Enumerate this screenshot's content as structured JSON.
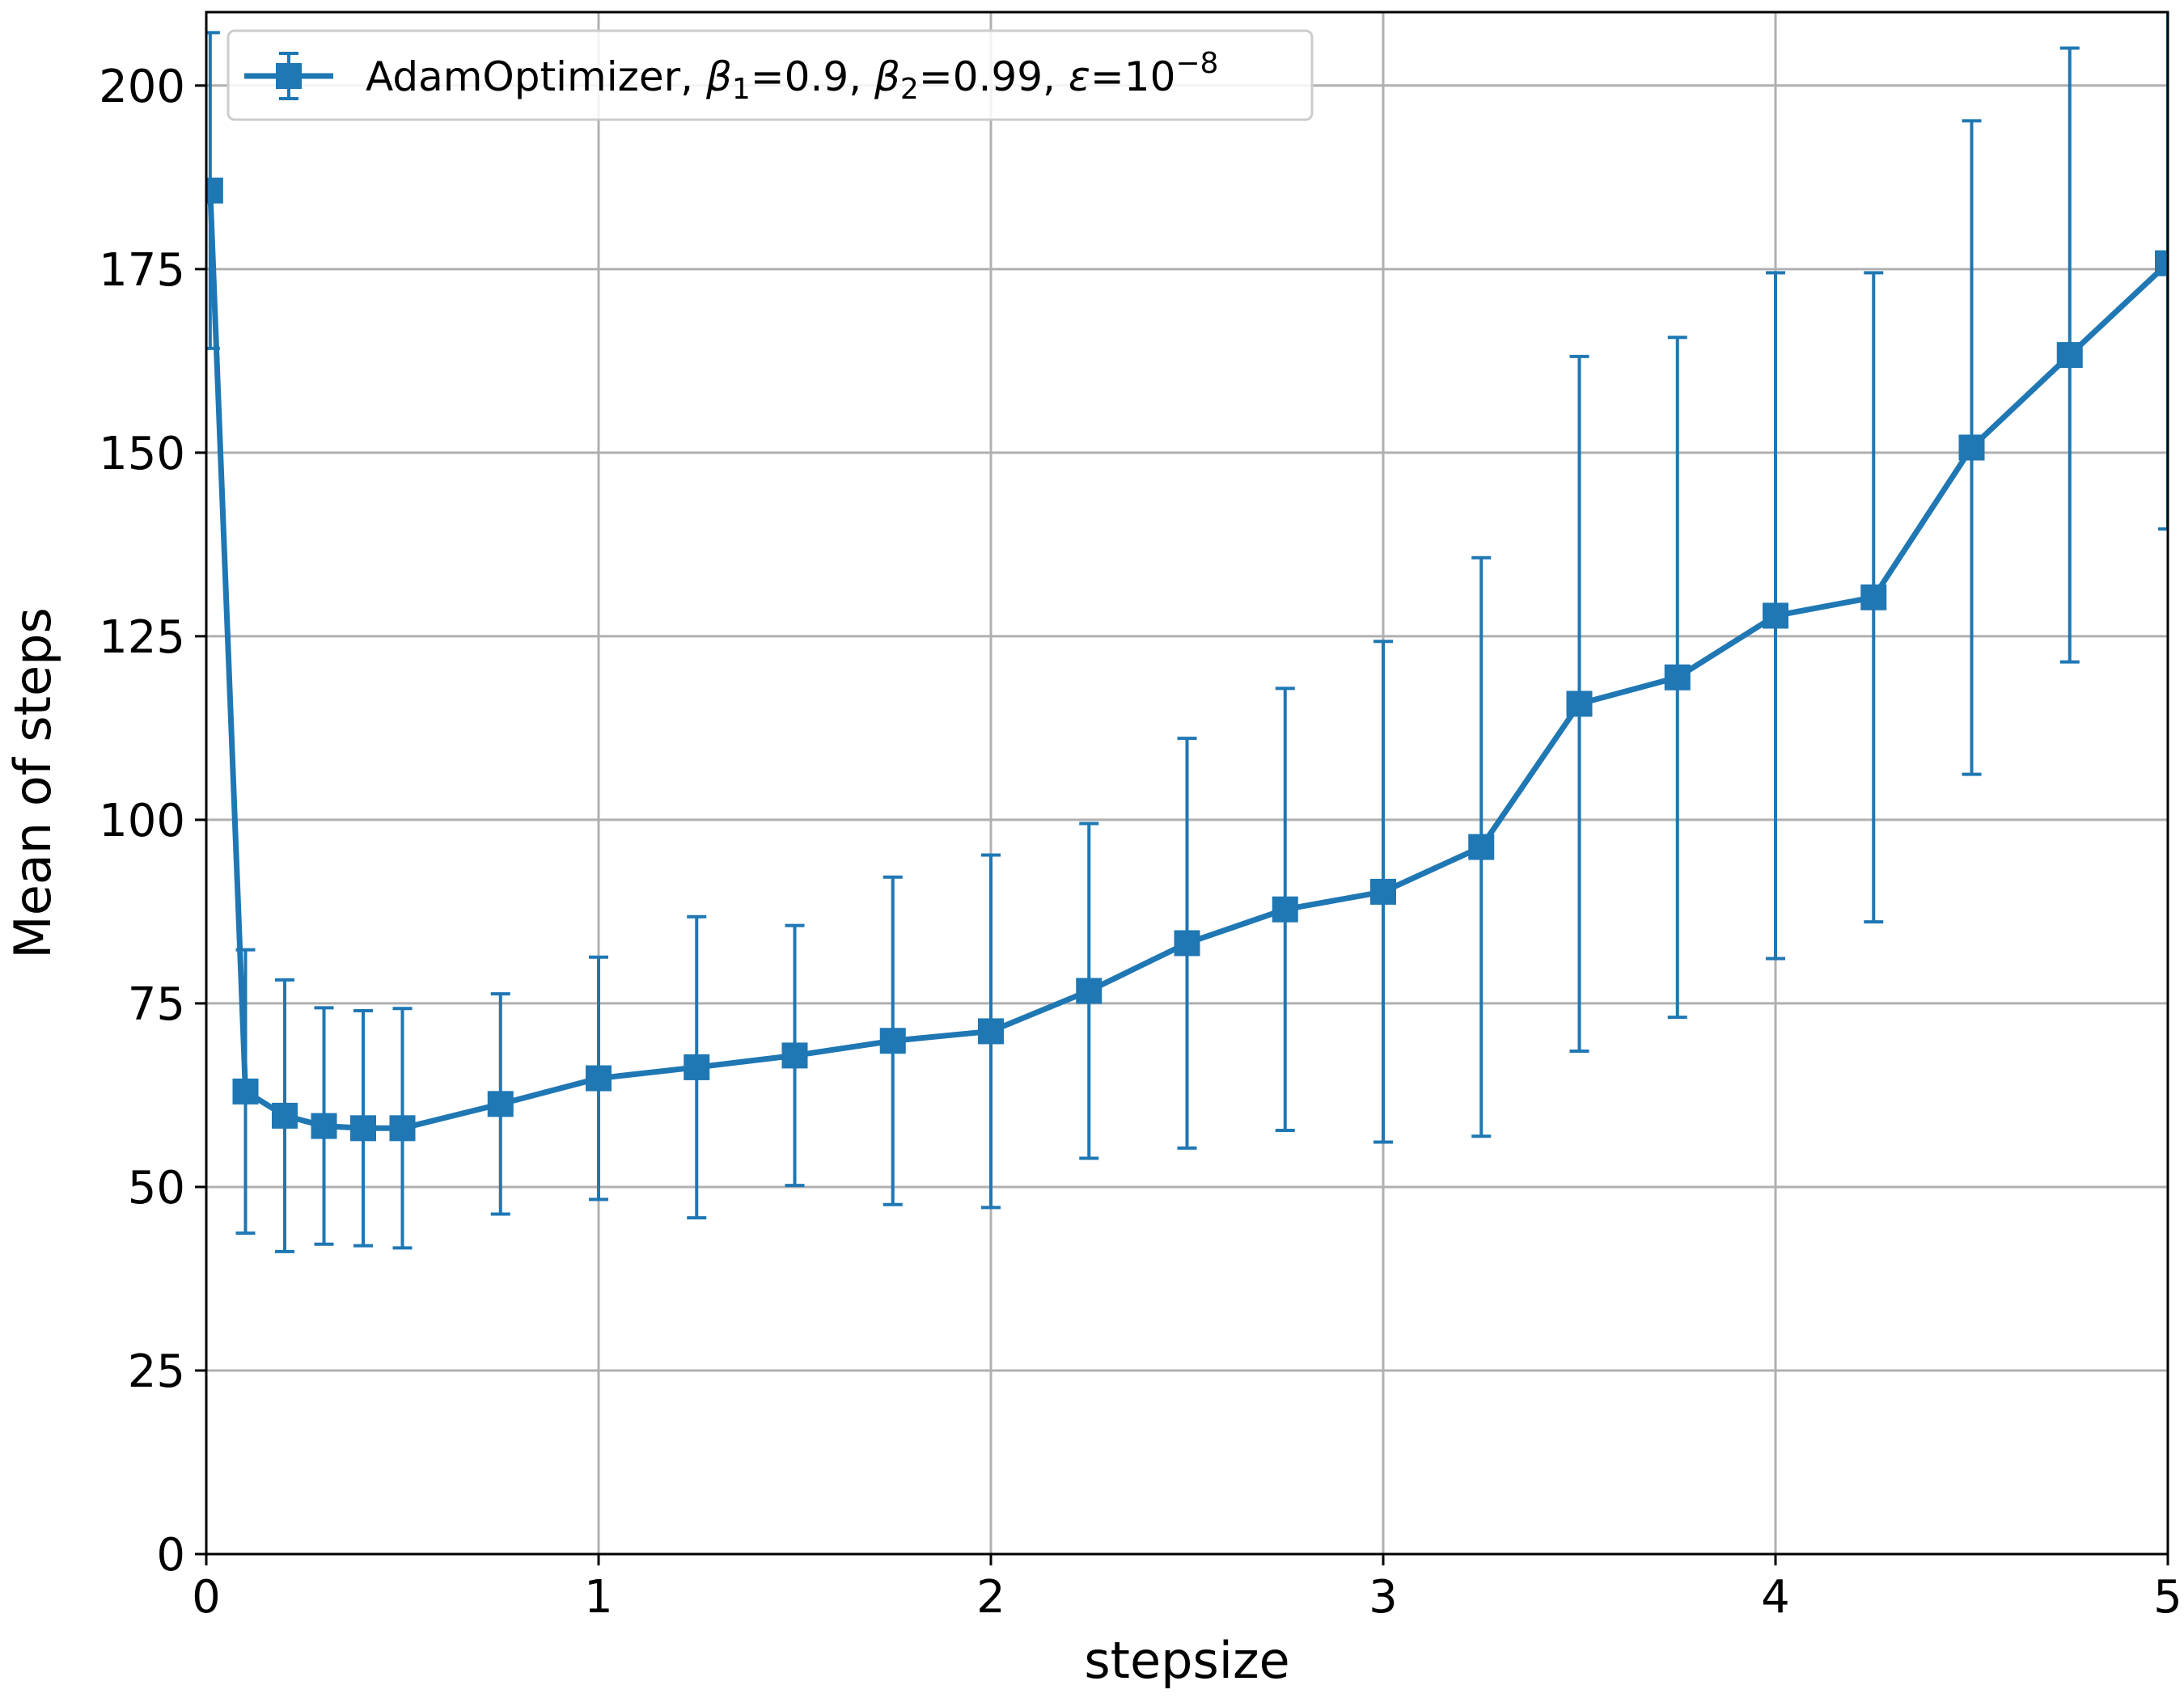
{
  "chart_data": {
    "type": "line",
    "title": "",
    "xlabel": "stepsize",
    "ylabel": "Mean of steps",
    "xlim": [
      0,
      5
    ],
    "ylim": [
      0,
      210
    ],
    "xticks": [
      0,
      1,
      2,
      3,
      4,
      5
    ],
    "yticks": [
      0,
      25,
      50,
      75,
      100,
      125,
      150,
      175,
      200
    ],
    "grid": true,
    "legend_position": "top-left",
    "color": "#1f77b4",
    "series": [
      {
        "name": "AdamOptimizer, β1=0.9, β2=0.99, ε=10−8",
        "legend_parts": {
          "prefix": "AdamOptimizer, ",
          "b1": "β",
          "b1_sub": "1",
          "b1_val": "=0.9, ",
          "b2": "β",
          "b2_sub": "2",
          "b2_val": "=0.99, ",
          "eps": "ε",
          "eps_val": "=10",
          "eps_exp": "−8"
        },
        "marker": "square",
        "points": [
          {
            "x": 0.01,
            "y": 185.7,
            "err": 21.5
          },
          {
            "x": 0.1,
            "y": 63.0,
            "err": 19.3
          },
          {
            "x": 0.2,
            "y": 59.7,
            "err": 18.5
          },
          {
            "x": 0.3,
            "y": 58.3,
            "err": 16.1
          },
          {
            "x": 0.4,
            "y": 58.0,
            "err": 16.0
          },
          {
            "x": 0.5,
            "y": 58.0,
            "err": 16.3
          },
          {
            "x": 0.75,
            "y": 61.3,
            "err": 15.0
          },
          {
            "x": 1.0,
            "y": 64.8,
            "err": 16.5
          },
          {
            "x": 1.25,
            "y": 66.3,
            "err": 20.5
          },
          {
            "x": 1.5,
            "y": 67.9,
            "err": 17.7
          },
          {
            "x": 1.75,
            "y": 69.9,
            "err": 22.3
          },
          {
            "x": 2.0,
            "y": 71.2,
            "err": 24.0
          },
          {
            "x": 2.25,
            "y": 76.7,
            "err": 22.8
          },
          {
            "x": 2.5,
            "y": 83.2,
            "err": 27.9
          },
          {
            "x": 2.75,
            "y": 87.8,
            "err": 30.1
          },
          {
            "x": 3.0,
            "y": 90.2,
            "err": 34.1
          },
          {
            "x": 3.25,
            "y": 96.3,
            "err": 39.4
          },
          {
            "x": 3.5,
            "y": 115.8,
            "err": 47.3
          },
          {
            "x": 3.75,
            "y": 119.4,
            "err": 46.3
          },
          {
            "x": 4.0,
            "y": 127.8,
            "err": 46.7
          },
          {
            "x": 4.25,
            "y": 130.3,
            "err": 44.2
          },
          {
            "x": 4.5,
            "y": 150.7,
            "err": 44.5
          },
          {
            "x": 4.75,
            "y": 163.3,
            "err": 41.8
          },
          {
            "x": 5.0,
            "y": 175.8,
            "err": 36.2
          }
        ]
      }
    ]
  }
}
